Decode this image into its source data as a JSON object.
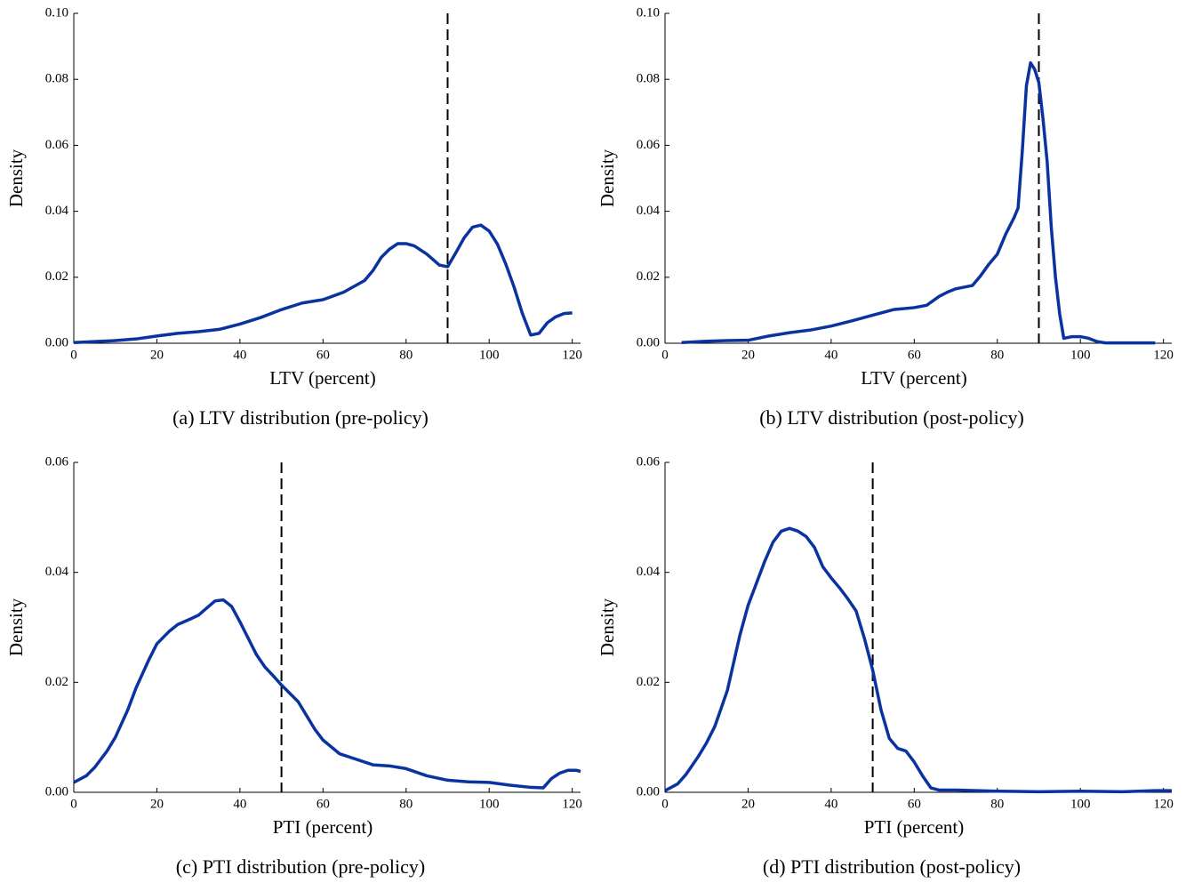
{
  "chart_data": [
    {
      "type": "line",
      "caption": "(a) LTV distribution (pre-policy)",
      "xlabel": "LTV (percent)",
      "ylabel": "Density",
      "xlim": [
        0,
        122
      ],
      "ylim": [
        0,
        0.1
      ],
      "xticks": [
        0,
        20,
        40,
        60,
        80,
        100,
        120
      ],
      "yticks": [
        {
          "value": 0,
          "label": "0.00"
        },
        0.02,
        0.04,
        0.06,
        0.08,
        {
          "value": 0.1,
          "label": "0.10"
        }
      ],
      "threshold": 90,
      "x": [
        0,
        5,
        10,
        15,
        20,
        25,
        30,
        35,
        40,
        45,
        50,
        55,
        60,
        65,
        70,
        72,
        74,
        76,
        78,
        80,
        82,
        85,
        88,
        90,
        92,
        94,
        96,
        98,
        100,
        102,
        104,
        106,
        108,
        110,
        112,
        114,
        116,
        118,
        120
      ],
      "series": [
        {
          "color": "#0b33a0",
          "values": [
            0.0002,
            0.0005,
            0.0008,
            0.0013,
            0.0022,
            0.003,
            0.0035,
            0.0042,
            0.0058,
            0.0078,
            0.0102,
            0.0122,
            0.0132,
            0.0155,
            0.019,
            0.022,
            0.026,
            0.0285,
            0.0302,
            0.0302,
            0.0295,
            0.027,
            0.0237,
            0.0232,
            0.0275,
            0.032,
            0.0352,
            0.0358,
            0.034,
            0.03,
            0.024,
            0.017,
            0.009,
            0.0025,
            0.003,
            0.0062,
            0.008,
            0.009,
            0.0092
          ]
        }
      ]
    },
    {
      "type": "line",
      "caption": "(b) LTV distribution (post-policy)",
      "xlabel": "LTV (percent)",
      "ylabel": "Density",
      "xlim": [
        0,
        122
      ],
      "ylim": [
        0,
        0.1
      ],
      "xticks": [
        0,
        20,
        40,
        60,
        80,
        100,
        120
      ],
      "yticks": [
        {
          "value": 0,
          "label": "0.00"
        },
        0.02,
        0.04,
        0.06,
        0.08,
        {
          "value": 0.1,
          "label": "0.10"
        }
      ],
      "threshold": 90,
      "x": [
        4,
        10,
        15,
        20,
        25,
        30,
        35,
        40,
        45,
        50,
        55,
        60,
        63,
        66,
        68,
        70,
        74,
        76,
        78,
        80,
        82,
        84,
        85,
        86,
        87,
        88,
        89,
        90,
        91,
        92,
        93,
        94,
        95,
        96,
        98,
        100,
        102,
        104,
        106,
        110,
        118
      ],
      "series": [
        {
          "color": "#0b33a0",
          "values": [
            0.0002,
            0.0006,
            0.0008,
            0.0009,
            0.0022,
            0.0032,
            0.004,
            0.0052,
            0.0068,
            0.0085,
            0.0102,
            0.0108,
            0.0115,
            0.0142,
            0.0155,
            0.0165,
            0.0175,
            0.0205,
            0.024,
            0.027,
            0.033,
            0.038,
            0.041,
            0.058,
            0.078,
            0.085,
            0.083,
            0.079,
            0.068,
            0.055,
            0.035,
            0.02,
            0.009,
            0.0015,
            0.002,
            0.002,
            0.0015,
            0.0005,
            0.0001,
            0.0001,
            0.0001
          ]
        }
      ]
    },
    {
      "type": "line",
      "caption": "(c) PTI distribution (pre-policy)",
      "xlabel": "PTI (percent)",
      "ylabel": "Density",
      "xlim": [
        0,
        122
      ],
      "ylim": [
        0,
        0.06
      ],
      "xticks": [
        0,
        20,
        40,
        60,
        80,
        100,
        120
      ],
      "yticks": [
        {
          "value": 0,
          "label": "0.00"
        },
        0.02,
        0.04,
        0.06
      ],
      "threshold": 50,
      "x": [
        0,
        3,
        5,
        8,
        10,
        13,
        15,
        18,
        20,
        23,
        25,
        28,
        30,
        32,
        34,
        36,
        38,
        40,
        42,
        44,
        46,
        48,
        50,
        54,
        56,
        58,
        60,
        64,
        68,
        72,
        76,
        80,
        85,
        90,
        95,
        100,
        105,
        110,
        113,
        115,
        117,
        119,
        121,
        122
      ],
      "series": [
        {
          "color": "#0b33a0",
          "values": [
            0.0018,
            0.003,
            0.0045,
            0.0075,
            0.01,
            0.015,
            0.019,
            0.024,
            0.027,
            0.0293,
            0.0305,
            0.0315,
            0.0322,
            0.0335,
            0.0348,
            0.035,
            0.0338,
            0.031,
            0.028,
            0.025,
            0.0228,
            0.0212,
            0.0195,
            0.0165,
            0.014,
            0.0115,
            0.0095,
            0.007,
            0.006,
            0.005,
            0.0048,
            0.0043,
            0.003,
            0.0022,
            0.0019,
            0.0018,
            0.0013,
            0.0009,
            0.0008,
            0.0025,
            0.0035,
            0.004,
            0.004,
            0.0038
          ]
        }
      ]
    },
    {
      "type": "line",
      "caption": "(d) PTI distribution (post-policy)",
      "xlabel": "PTI (percent)",
      "ylabel": "Density",
      "xlim": [
        0,
        122
      ],
      "ylim": [
        0,
        0.06
      ],
      "xticks": [
        0,
        20,
        40,
        60,
        80,
        100,
        120
      ],
      "yticks": [
        {
          "value": 0,
          "label": "0.00"
        },
        0.02,
        0.04,
        0.06
      ],
      "threshold": 50,
      "x": [
        0,
        3,
        5,
        8,
        10,
        12,
        15,
        18,
        20,
        22,
        24,
        26,
        28,
        30,
        32,
        34,
        36,
        38,
        40,
        42,
        44,
        46,
        48,
        50,
        52,
        54,
        56,
        58,
        60,
        62,
        64,
        66,
        70,
        80,
        90,
        100,
        110,
        118,
        122
      ],
      "series": [
        {
          "color": "#0b33a0",
          "values": [
            0.0003,
            0.0015,
            0.0032,
            0.0065,
            0.009,
            0.012,
            0.0185,
            0.0285,
            0.034,
            0.038,
            0.042,
            0.0455,
            0.0475,
            0.048,
            0.0475,
            0.0465,
            0.0445,
            0.041,
            0.039,
            0.0372,
            0.0352,
            0.033,
            0.028,
            0.0222,
            0.015,
            0.0098,
            0.008,
            0.0075,
            0.0055,
            0.003,
            0.0008,
            0.0004,
            0.0004,
            0.0002,
            0.0001,
            0.0002,
            0.0001,
            0.0003,
            0.0003
          ]
        }
      ]
    }
  ]
}
